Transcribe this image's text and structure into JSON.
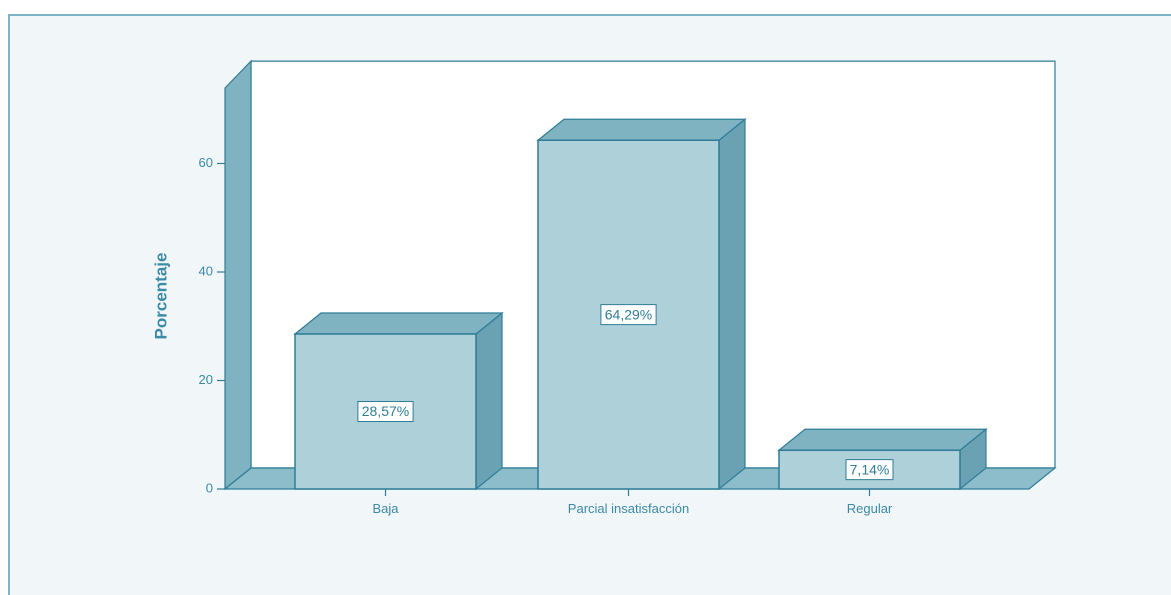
{
  "chart_data": {
    "type": "bar",
    "categories": [
      "Baja",
      "Parcial insatisfacción",
      "Regular"
    ],
    "values": [
      28.57,
      64.29,
      7.14
    ],
    "data_labels": [
      "28,57%",
      "64,29%",
      "7,14%"
    ],
    "title": "",
    "xlabel": "",
    "ylabel": "Porcentaje",
    "ylim": [
      0,
      75
    ],
    "yticks": [
      0,
      20,
      40,
      60
    ],
    "ytick_labels": [
      "0",
      "20",
      "40",
      "60"
    ],
    "grid": false,
    "legend": "none",
    "style": "3d",
    "colors": {
      "bar_front": "#aed0d9",
      "bar_top": "#7fb3c2",
      "bar_side": "#6aa2b3",
      "outline": "#2f7d98",
      "wall": "#ffffff",
      "floor": "#8dbccb",
      "background": "#f1f6f9",
      "text": "#3b8aa6"
    }
  }
}
